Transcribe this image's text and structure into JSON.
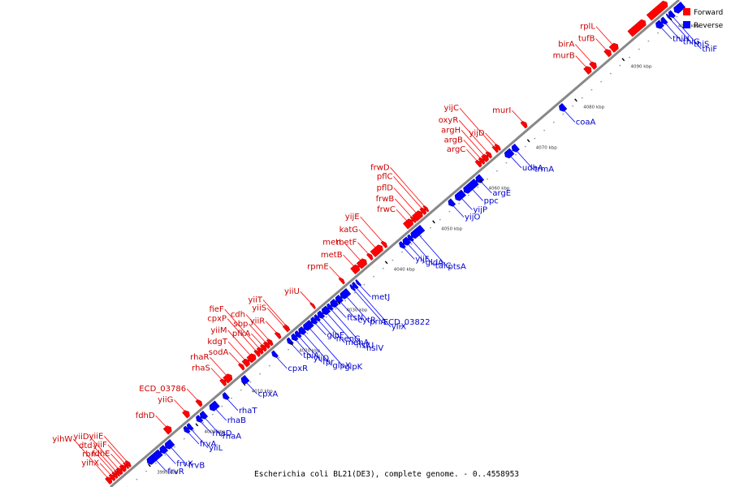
{
  "colors": {
    "forward": "#ff0000",
    "reverse": "#0000ff",
    "backbone": "#888888",
    "tick_dot": "#999999"
  },
  "legend": {
    "forward_label": "Forward",
    "reverse_label": "Reverse"
  },
  "caption": "Escherichia coli BL21(DE3), complete genome. - 0..4558953",
  "genome_start_kbp": 3983,
  "genome_end_kbp": 4103,
  "ticks": [
    {
      "kbp": 3990,
      "label": "3990 kbp"
    },
    {
      "kbp": 4000,
      "label": "4000 kbp"
    },
    {
      "kbp": 4010,
      "label": "4010 kbp"
    },
    {
      "kbp": 4020,
      "label": "4020 kbp"
    },
    {
      "kbp": 4030,
      "label": "4030 kbp"
    },
    {
      "kbp": 4040,
      "label": "4040 kbp"
    },
    {
      "kbp": 4050,
      "label": "4050 kbp"
    },
    {
      "kbp": 4060,
      "label": "4060 kbp"
    },
    {
      "kbp": 4070,
      "label": "4070 kbp"
    },
    {
      "kbp": 4080,
      "label": "4080 kbp"
    },
    {
      "kbp": 4090,
      "label": "4090 kbp"
    },
    {
      "kbp": 4100,
      "label": "4100 kbp"
    }
  ],
  "forward_genes": [
    {
      "name": "yihX",
      "start": 3984.0,
      "end": 3984.6
    },
    {
      "name": "rbn",
      "start": 3984.6,
      "end": 3985.1
    },
    {
      "name": "dtd",
      "start": 3985.1,
      "end": 3985.5
    },
    {
      "name": "yiiD",
      "start": 3985.5,
      "end": 3986.2
    },
    {
      "name": "yihW",
      "start": 3983.2,
      "end": 3984.0
    },
    {
      "name": "fdhE",
      "start": 3986.2,
      "end": 3987.0
    },
    {
      "name": "yiiF",
      "start": 3987.0,
      "end": 3987.4
    },
    {
      "name": "yiiE",
      "start": 3987.4,
      "end": 3987.9
    },
    {
      "name": "fdhD",
      "start": 3995.5,
      "end": 3996.6
    },
    {
      "name": "yiiG",
      "start": 3999.5,
      "end": 4000.4
    },
    {
      "name": "ECD_03786",
      "start": 4002.3,
      "end": 4003.0
    },
    {
      "name": "rhaS",
      "start": 4007.4,
      "end": 4008.1
    },
    {
      "name": "rhaR",
      "start": 4008.1,
      "end": 4009.4
    },
    {
      "name": "sodA",
      "start": 4011.3,
      "end": 4011.9
    },
    {
      "name": "kdgT",
      "start": 4012.1,
      "end": 4013.1
    },
    {
      "name": "yiiM",
      "start": 4013.1,
      "end": 4014.4
    },
    {
      "name": "cpxP",
      "start": 4014.6,
      "end": 4015.2
    },
    {
      "name": "fieF",
      "start": 4015.2,
      "end": 4015.9
    },
    {
      "name": "pfkA",
      "start": 4015.9,
      "end": 4016.6
    },
    {
      "name": "sbp",
      "start": 4016.6,
      "end": 4017.3
    },
    {
      "name": "cdh",
      "start": 4017.3,
      "end": 4017.9
    },
    {
      "name": "yiiR",
      "start": 4019.0,
      "end": 4019.6
    },
    {
      "name": "yiiS",
      "start": 4020.7,
      "end": 4021.0
    },
    {
      "name": "yiiT",
      "start": 4021.0,
      "end": 4021.4
    },
    {
      "name": "yiiU",
      "start": 4026.4,
      "end": 4026.8
    },
    {
      "name": "rpmE",
      "start": 4032.5,
      "end": 4033.0
    },
    {
      "name": "metB",
      "start": 4035.0,
      "end": 4036.3
    },
    {
      "name": "metL",
      "start": 4036.3,
      "end": 4037.8
    },
    {
      "name": "metF",
      "start": 4038.4,
      "end": 4039.0
    },
    {
      "name": "katG",
      "start": 4039.2,
      "end": 4041.2
    },
    {
      "name": "yijE",
      "start": 4041.4,
      "end": 4042.0
    },
    {
      "name": "frwC",
      "start": 4046.1,
      "end": 4047.6
    },
    {
      "name": "frwB",
      "start": 4047.6,
      "end": 4048.0
    },
    {
      "name": "pflD",
      "start": 4048.0,
      "end": 4049.6
    },
    {
      "name": "pflC",
      "start": 4049.6,
      "end": 4050.3
    },
    {
      "name": "frwD",
      "start": 4050.3,
      "end": 4050.7
    },
    {
      "name": "argC",
      "start": 4061.3,
      "end": 4062.0
    },
    {
      "name": "argB",
      "start": 4062.0,
      "end": 4062.6
    },
    {
      "name": "argH",
      "start": 4062.6,
      "end": 4063.5
    },
    {
      "name": "oxyR",
      "start": 4063.5,
      "end": 4064.1
    },
    {
      "name": "yijC",
      "start": 4064.9,
      "end": 4065.4
    },
    {
      "name": "yijD",
      "start": 4065.4,
      "end": 4065.9
    },
    {
      "name": "murI",
      "start": 4070.9,
      "end": 4071.6
    },
    {
      "name": "murB",
      "start": 4084.2,
      "end": 4085.2
    },
    {
      "name": "birA",
      "start": 4085.4,
      "end": 4086.3
    },
    {
      "name": "tufB",
      "start": 4088.5,
      "end": 4089.4
    },
    {
      "name": "rplL",
      "start": 4089.6,
      "end": 4090.9
    },
    {
      "name": "",
      "start": 4093.5,
      "end": 4096.7
    },
    {
      "name": "",
      "start": 4097.5,
      "end": 4101.3
    }
  ],
  "reverse_genes": [
    {
      "name": "frvR",
      "start": 3990.0,
      "end": 3992.7
    },
    {
      "name": "frvX",
      "start": 3992.7,
      "end": 3993.8
    },
    {
      "name": "frvB",
      "start": 3993.8,
      "end": 3995.2
    },
    {
      "name": "frvA",
      "start": 3997.8,
      "end": 3998.5
    },
    {
      "name": "yiiL",
      "start": 3998.5,
      "end": 3999.2
    },
    {
      "name": "rhaD",
      "start": 4000.4,
      "end": 4001.2
    },
    {
      "name": "rhaA",
      "start": 4001.2,
      "end": 4002.2
    },
    {
      "name": "rhaB",
      "start": 4003.2,
      "end": 4004.7
    },
    {
      "name": "rhaT",
      "start": 4006.0,
      "end": 4006.8
    },
    {
      "name": "cpxA",
      "start": 4009.9,
      "end": 4011.0
    },
    {
      "name": "cpxR",
      "start": 4016.4,
      "end": 4017.1
    },
    {
      "name": "tpiA",
      "start": 4019.6,
      "end": 4020.3
    },
    {
      "name": "yiiQ",
      "start": 4020.5,
      "end": 4021.3
    },
    {
      "name": "fpr",
      "start": 4021.3,
      "end": 4022.0
    },
    {
      "name": "glpX",
      "start": 4022.0,
      "end": 4023.0
    },
    {
      "name": "glpK",
      "start": 4023.0,
      "end": 4024.6
    },
    {
      "name": "glpF",
      "start": 4024.6,
      "end": 4025.4
    },
    {
      "name": "menG",
      "start": 4025.4,
      "end": 4026.0
    },
    {
      "name": "menA",
      "start": 4026.0,
      "end": 4026.9
    },
    {
      "name": "hslU",
      "start": 4026.9,
      "end": 4028.1
    },
    {
      "name": "hslV",
      "start": 4028.1,
      "end": 4028.7
    },
    {
      "name": "ftsN",
      "start": 4028.7,
      "end": 4029.8
    },
    {
      "name": "cytR",
      "start": 4029.8,
      "end": 4030.8
    },
    {
      "name": "priA",
      "start": 4030.8,
      "end": 4032.4
    },
    {
      "name": "ECD_03822",
      "start": 4033.0,
      "end": 4033.4
    },
    {
      "name": "yiiX",
      "start": 4033.4,
      "end": 4034.0
    },
    {
      "name": "metJ",
      "start": 4034.2,
      "end": 4034.6
    },
    {
      "name": "yijF",
      "start": 4043.3,
      "end": 4044.0
    },
    {
      "name": "gldA",
      "start": 4044.0,
      "end": 4045.1
    },
    {
      "name": "talC",
      "start": 4045.1,
      "end": 4045.7
    },
    {
      "name": "ptsA",
      "start": 4045.7,
      "end": 4048.0
    },
    {
      "name": "yijO",
      "start": 4053.6,
      "end": 4054.5
    },
    {
      "name": "yijP",
      "start": 4055.0,
      "end": 4056.7
    },
    {
      "name": "ppc",
      "start": 4056.8,
      "end": 4059.4
    },
    {
      "name": "argE",
      "start": 4059.4,
      "end": 4060.5
    },
    {
      "name": "udhA",
      "start": 4065.5,
      "end": 4066.9
    },
    {
      "name": "trmA",
      "start": 4067.0,
      "end": 4068.0
    },
    {
      "name": "coaA",
      "start": 4077.0,
      "end": 4078.0
    },
    {
      "name": "thiH",
      "start": 4097.4,
      "end": 4098.5
    },
    {
      "name": "thiG",
      "start": 4098.5,
      "end": 4099.3
    },
    {
      "name": "thiS",
      "start": 4099.8,
      "end": 4100.1
    },
    {
      "name": "thiF",
      "start": 4100.1,
      "end": 4100.9
    },
    {
      "name": "",
      "start": 4101.2,
      "end": 4103.0
    }
  ]
}
